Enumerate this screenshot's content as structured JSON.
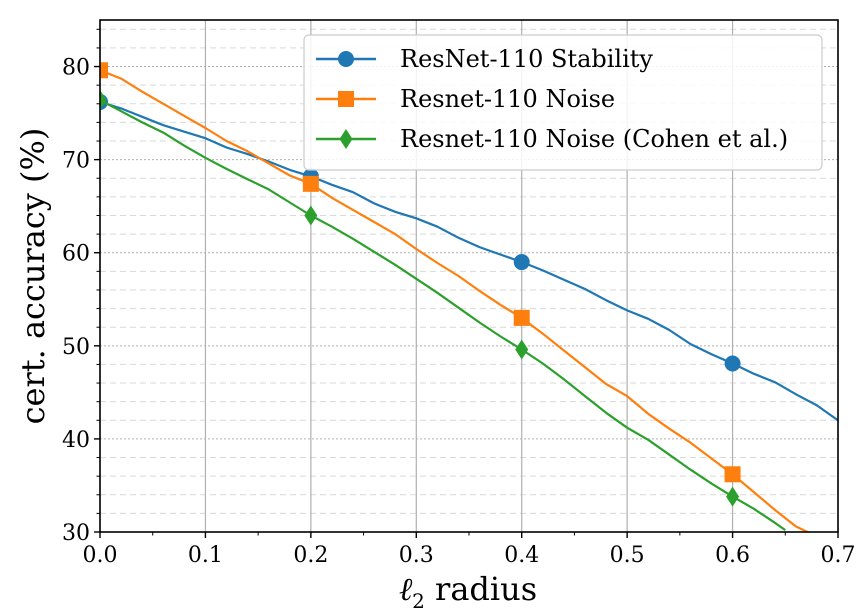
{
  "chart_data": {
    "type": "line",
    "xlabel": "ℓ2 radius",
    "ylabel": "cert. accuracy (%)",
    "xlim": [
      0.0,
      0.7
    ],
    "ylim": [
      30,
      85
    ],
    "x_ticks": [
      0.0,
      0.1,
      0.2,
      0.3,
      0.4,
      0.5,
      0.6,
      0.7
    ],
    "x_tick_labels": [
      "0.0",
      "0.1",
      "0.2",
      "0.3",
      "0.4",
      "0.5",
      "0.6",
      "0.7"
    ],
    "y_ticks": [
      30,
      40,
      50,
      60,
      70,
      80
    ],
    "y_tick_labels": [
      "30",
      "40",
      "50",
      "60",
      "70",
      "80"
    ],
    "grid": true,
    "legend_position": "top-right",
    "series": [
      {
        "name": "ResNet-110 Stability",
        "color": "#1f77b4",
        "marker": "circle",
        "markers_at": [
          0.0,
          0.2,
          0.4,
          0.6
        ],
        "x": [
          0.0,
          0.02,
          0.04,
          0.06,
          0.08,
          0.1,
          0.12,
          0.14,
          0.16,
          0.18,
          0.2,
          0.22,
          0.24,
          0.26,
          0.28,
          0.3,
          0.32,
          0.34,
          0.36,
          0.38,
          0.4,
          0.42,
          0.44,
          0.46,
          0.48,
          0.5,
          0.52,
          0.54,
          0.56,
          0.58,
          0.6,
          0.62,
          0.64,
          0.66,
          0.68,
          0.7
        ],
        "y": [
          76.2,
          75.5,
          74.6,
          73.7,
          73.0,
          72.3,
          71.3,
          70.6,
          69.8,
          68.9,
          68.2,
          67.3,
          66.5,
          65.3,
          64.4,
          63.7,
          62.8,
          61.6,
          60.6,
          59.8,
          59.0,
          58.1,
          57.1,
          56.1,
          54.9,
          53.8,
          52.9,
          51.7,
          50.2,
          49.1,
          48.1,
          47.0,
          46.1,
          44.8,
          43.6,
          42.0
        ]
      },
      {
        "name": "Resnet-110 Noise",
        "color": "#ff7f0e",
        "marker": "square",
        "markers_at": [
          0.0,
          0.2,
          0.4,
          0.6
        ],
        "x": [
          0.0,
          0.02,
          0.04,
          0.06,
          0.08,
          0.1,
          0.12,
          0.14,
          0.16,
          0.18,
          0.2,
          0.22,
          0.24,
          0.26,
          0.28,
          0.3,
          0.32,
          0.34,
          0.36,
          0.38,
          0.4,
          0.42,
          0.44,
          0.46,
          0.48,
          0.5,
          0.52,
          0.54,
          0.56,
          0.58,
          0.6,
          0.62,
          0.64,
          0.66,
          0.675
        ],
        "y": [
          79.6,
          78.7,
          77.3,
          76.0,
          74.7,
          73.4,
          72.0,
          70.9,
          69.6,
          68.3,
          67.4,
          65.9,
          64.6,
          63.3,
          62.0,
          60.4,
          58.9,
          57.5,
          55.9,
          54.4,
          53.0,
          51.3,
          49.5,
          47.7,
          45.9,
          44.6,
          42.7,
          41.1,
          39.6,
          37.9,
          36.2,
          34.3,
          32.4,
          30.6,
          29.8
        ]
      },
      {
        "name": "Resnet-110 Noise (Cohen et al.)",
        "color": "#2ca02c",
        "marker": "diamond",
        "markers_at": [
          0.0,
          0.2,
          0.4,
          0.6
        ],
        "x": [
          0.0,
          0.02,
          0.04,
          0.06,
          0.08,
          0.1,
          0.12,
          0.14,
          0.16,
          0.18,
          0.2,
          0.22,
          0.24,
          0.26,
          0.28,
          0.3,
          0.32,
          0.34,
          0.36,
          0.38,
          0.4,
          0.42,
          0.44,
          0.46,
          0.48,
          0.5,
          0.52,
          0.54,
          0.56,
          0.58,
          0.6,
          0.62,
          0.64,
          0.65
        ],
        "y": [
          76.4,
          75.2,
          74.0,
          72.9,
          71.5,
          70.2,
          69.0,
          67.9,
          66.8,
          65.4,
          64.0,
          62.8,
          61.5,
          60.1,
          58.7,
          57.2,
          55.7,
          54.1,
          52.5,
          51.0,
          49.6,
          48.1,
          46.4,
          44.6,
          42.8,
          41.2,
          39.9,
          38.3,
          36.7,
          35.2,
          33.8,
          32.5,
          31.0,
          30.2
        ]
      }
    ]
  }
}
